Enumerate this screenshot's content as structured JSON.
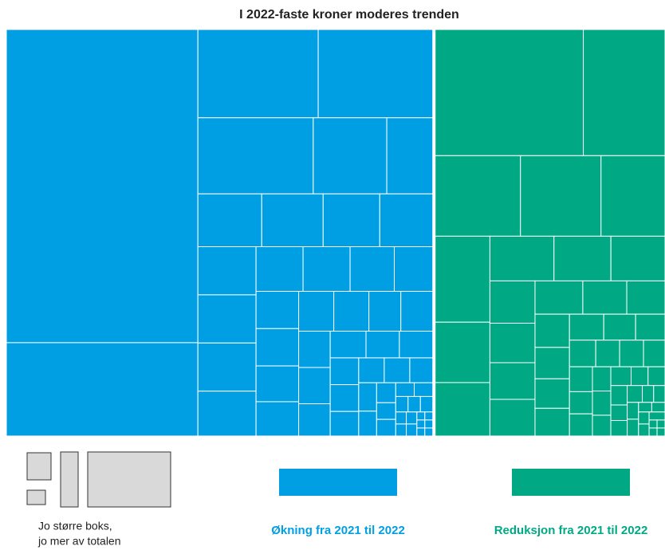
{
  "chart_data": {
    "type": "treemap",
    "title": "I 2022-faste kroner moderes trenden",
    "note": [
      "Jo større boks,",
      "jo mer av totalen"
    ],
    "series": [
      {
        "name": "Økning fra 2021 til 2022",
        "color": "#009fe3",
        "values": [
          943,
          281,
          167,
          159,
          138,
          88,
          55,
          53,
          51,
          47,
          44,
          44,
          44,
          44,
          41,
          33,
          33,
          31,
          27,
          25,
          25,
          24,
          23,
          22,
          22,
          20,
          20,
          18,
          18,
          16,
          15,
          14,
          14,
          12,
          12,
          11,
          10,
          10,
          9,
          8,
          7,
          6,
          5,
          5,
          4,
          4,
          3,
          3,
          3,
          2,
          2,
          2,
          2,
          1,
          1,
          1,
          1,
          1,
          1
        ]
      },
      {
        "name": "Reduksjon fra 2021 til 2022",
        "color": "#00a984",
        "values": [
          294,
          162,
          108,
          102,
          81,
          74,
          52,
          46,
          45,
          40,
          38,
          30,
          28,
          26,
          26,
          25,
          23,
          20,
          18,
          17,
          16,
          15,
          14,
          13,
          12,
          11,
          10,
          10,
          9,
          9,
          8,
          8,
          7,
          7,
          6,
          6,
          5,
          5,
          5,
          4,
          4,
          4,
          3,
          3,
          3,
          3,
          2,
          2,
          2,
          2,
          2,
          1,
          1,
          1,
          1
        ]
      }
    ]
  }
}
